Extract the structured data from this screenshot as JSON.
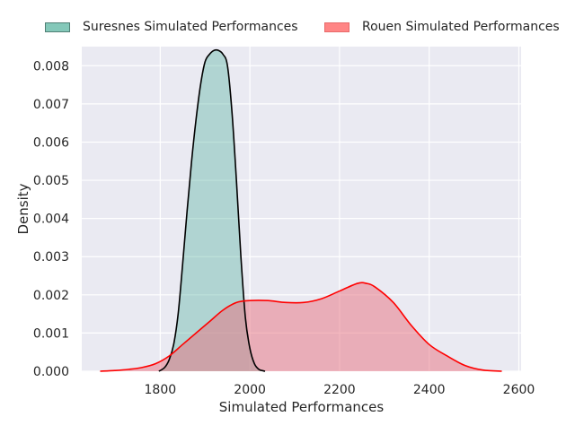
{
  "chart_data": {
    "type": "area",
    "subtype": "kde",
    "xlabel": "Simulated Performances",
    "ylabel": "Density",
    "xlim": [
      1625,
      2605
    ],
    "ylim": [
      0,
      0.0085
    ],
    "xticks": [
      1800,
      2000,
      2200,
      2400,
      2600
    ],
    "yticks": [
      0.0,
      0.001,
      0.002,
      0.003,
      0.004,
      0.005,
      0.006,
      0.007,
      0.008
    ],
    "ytick_labels": [
      "0.000",
      "0.001",
      "0.002",
      "0.003",
      "0.004",
      "0.005",
      "0.006",
      "0.007",
      "0.008"
    ],
    "grid": true,
    "legend_position": "top, above plot",
    "series": [
      {
        "name": "Suresnes Simulated Performances",
        "fill": "#5bb5a2",
        "fill_opacity": 0.4,
        "line": "#000000",
        "x": [
          1797,
          1810,
          1820,
          1830,
          1840,
          1850,
          1860,
          1870,
          1880,
          1890,
          1900,
          1910,
          1920,
          1930,
          1940,
          1950,
          1960,
          1970,
          1980,
          1990,
          2000,
          2010,
          2020,
          2030,
          2034
        ],
        "y": [
          0,
          0.0001,
          0.0003,
          0.0007,
          0.0015,
          0.0028,
          0.0042,
          0.0055,
          0.0066,
          0.0075,
          0.0081,
          0.0083,
          0.0084,
          0.0084,
          0.0083,
          0.008,
          0.0068,
          0.005,
          0.003,
          0.0014,
          0.0006,
          0.0002,
          5e-05,
          1e-05,
          0
        ]
      },
      {
        "name": "Rouen Simulated Performances",
        "fill": "#e8707e",
        "fill_opacity": 0.5,
        "line": "#ff0000",
        "x": [
          1666,
          1700,
          1730,
          1760,
          1790,
          1820,
          1850,
          1880,
          1910,
          1940,
          1970,
          2000,
          2040,
          2080,
          2120,
          2160,
          2200,
          2240,
          2260,
          2280,
          2320,
          2360,
          2400,
          2440,
          2480,
          2520,
          2562
        ],
        "y": [
          0,
          2e-05,
          5e-05,
          0.0001,
          0.0002,
          0.0004,
          0.0007,
          0.001,
          0.0013,
          0.0016,
          0.0018,
          0.00185,
          0.00185,
          0.0018,
          0.0018,
          0.0019,
          0.0021,
          0.0023,
          0.0023,
          0.0022,
          0.0018,
          0.0012,
          0.0007,
          0.0004,
          0.00015,
          3e-05,
          0
        ]
      }
    ]
  }
}
